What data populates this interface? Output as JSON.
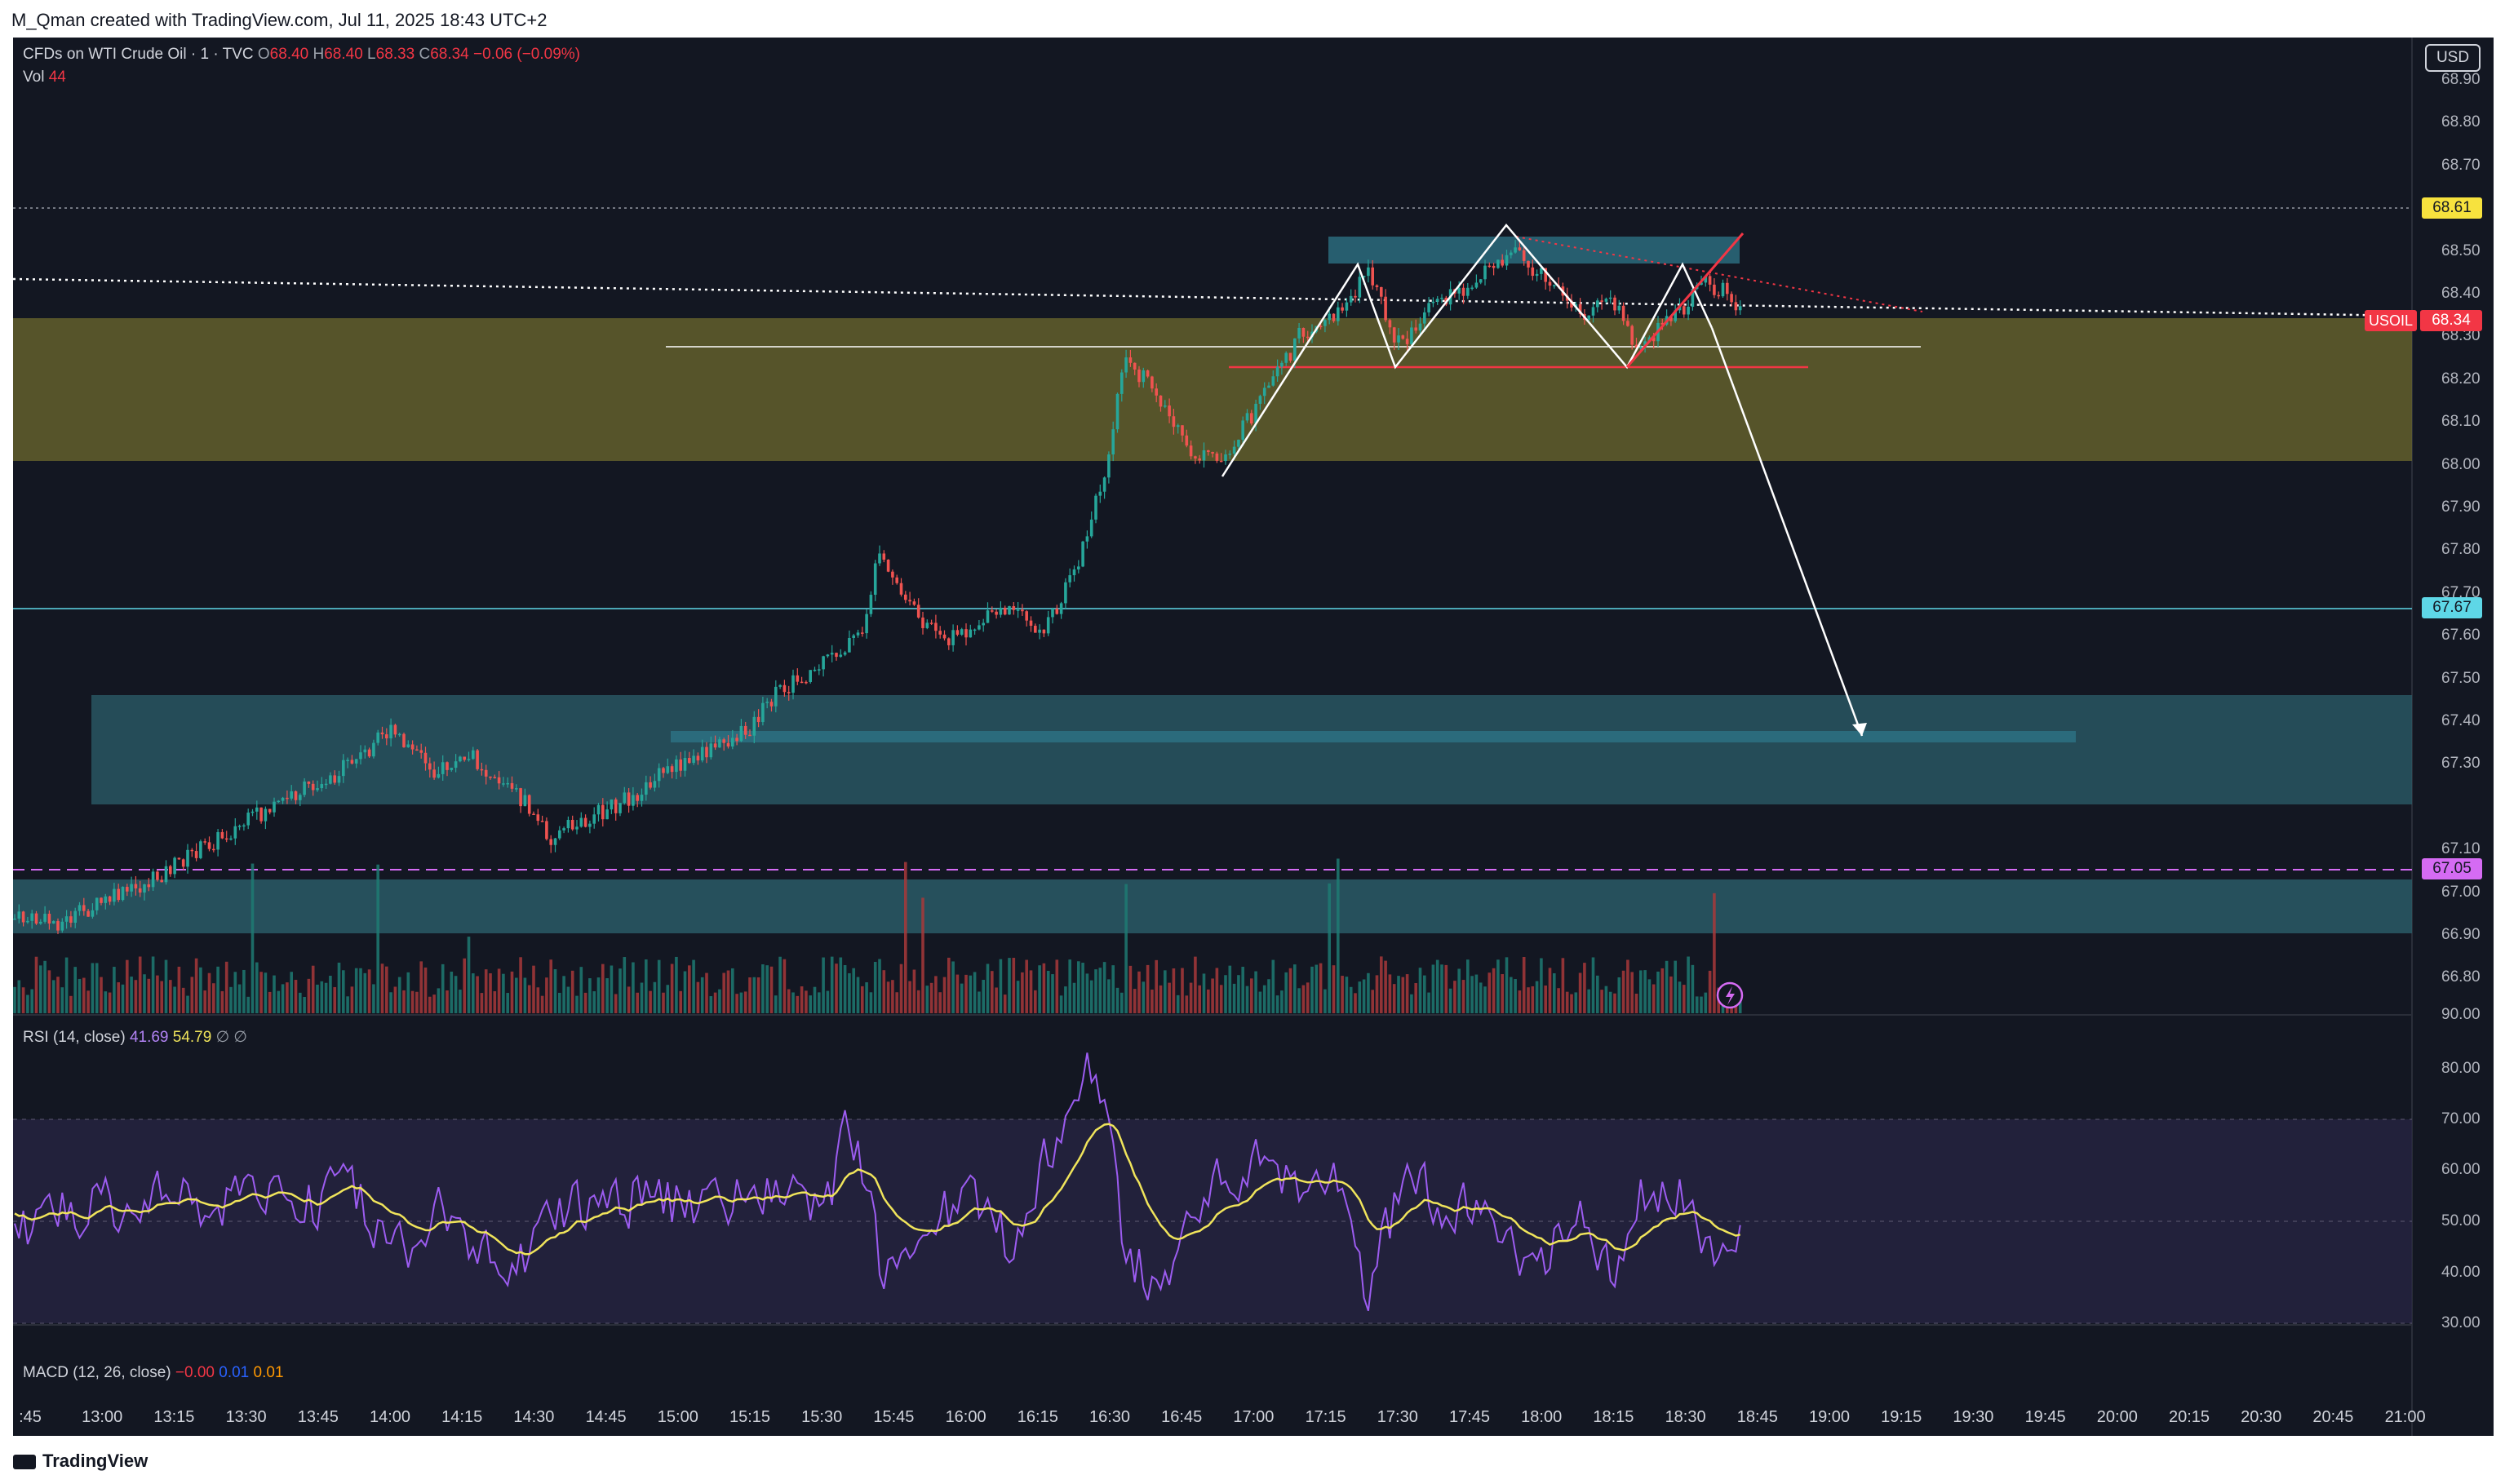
{
  "header": {
    "caption": "M_Qman created with TradingView.com, Jul 11, 2025 18:43 UTC+2"
  },
  "main_pane": {
    "symbol": "CFDs on WTI Crude Oil · 1 · TVC",
    "open_label": "O",
    "open": "68.40",
    "high_label": "H",
    "high": "68.40",
    "low_label": "L",
    "low": "68.33",
    "close_label": "C",
    "close": "68.34",
    "change": "−0.06 (−0.09%)",
    "vol_label": "Vol",
    "vol_value": "44"
  },
  "currency_button": "USD",
  "price_axis": {
    "ticks": [
      "68.90",
      "68.80",
      "68.70",
      "68.50",
      "68.40",
      "68.30",
      "68.20",
      "68.10",
      "68.00",
      "67.90",
      "67.80",
      "67.70",
      "67.60",
      "67.50",
      "67.40",
      "67.30",
      "67.10",
      "67.00",
      "66.90",
      "66.80"
    ],
    "badges": {
      "level_68_61": "68.61",
      "ticker": "USOIL",
      "last_price": "68.34",
      "level_67_67": "67.67",
      "level_67_05": "67.05"
    }
  },
  "rsi_pane": {
    "label": "RSI (14, close)",
    "value": "41.69",
    "ma_value": "54.79",
    "extra": "∅ ∅",
    "ticks": [
      "90.00",
      "80.00",
      "70.00",
      "60.00",
      "50.00",
      "40.00",
      "30.00"
    ]
  },
  "macd_pane": {
    "label": "MACD (12, 26, close)",
    "macd": "−0.00",
    "signal": "0.01",
    "hist": "0.01"
  },
  "time_axis": {
    "labels": [
      ":45",
      "13:00",
      "13:15",
      "13:30",
      "13:45",
      "14:00",
      "14:15",
      "14:30",
      "14:45",
      "15:00",
      "15:15",
      "15:30",
      "15:45",
      "16:00",
      "16:15",
      "16:30",
      "16:45",
      "17:00",
      "17:15",
      "17:30",
      "17:45",
      "18:00",
      "18:15",
      "18:30",
      "18:45",
      "19:00",
      "19:15",
      "19:30",
      "19:45",
      "20:00",
      "20:15",
      "20:30",
      "20:45",
      "21:00"
    ]
  },
  "footer": {
    "brand": "TradingView"
  },
  "colors": {
    "background": "#131722",
    "up": "#26a69a",
    "down": "#ef5350",
    "rsi_line": "#9c5cf0",
    "rsi_ma": "#f0e45b",
    "zone_olive": "#6e6a2e",
    "zone_teal": "#2a5a66",
    "badge_yellow": "#f7e23e",
    "badge_red": "#f23645",
    "badge_cyan": "#5ed7e7",
    "badge_purple": "#d56bf3"
  },
  "icons": [
    "lightning-icon",
    "tradingview-logo-icon"
  ]
}
